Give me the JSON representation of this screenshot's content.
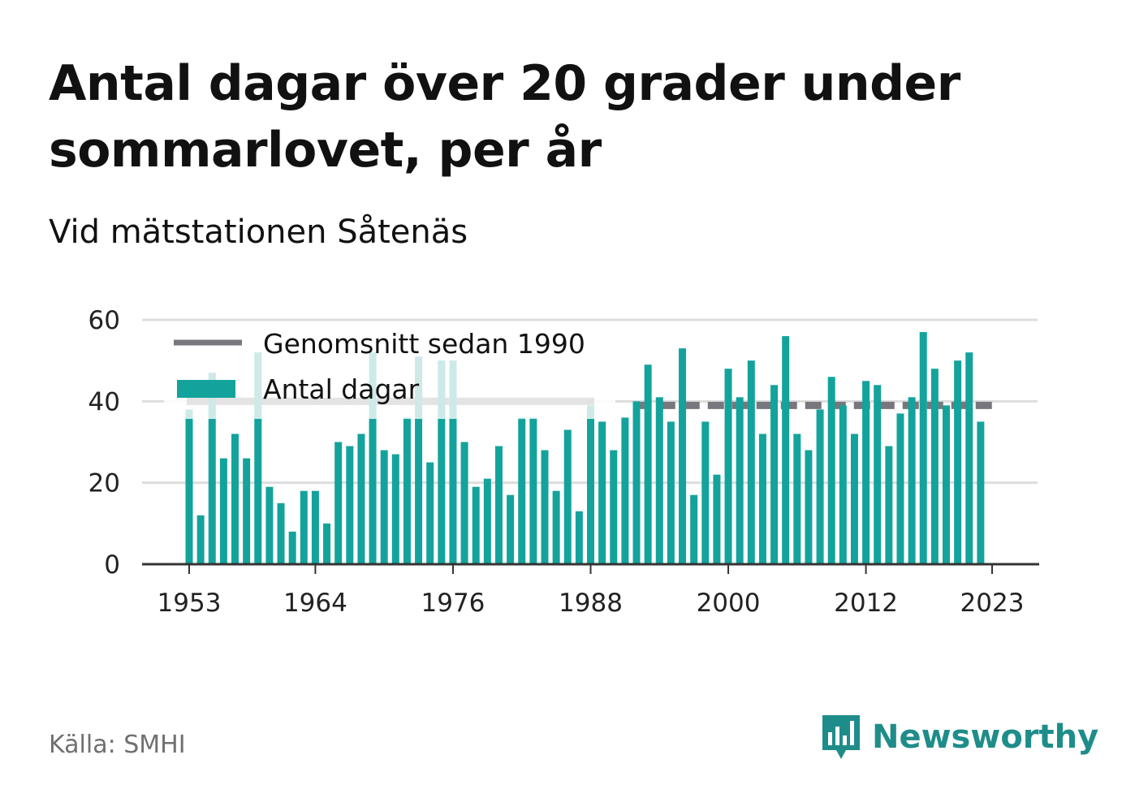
{
  "title": "Antal dagar över 20 grader under sommarlovet, per år",
  "subtitle": "Vid mätstationen Såtenäs",
  "source": "Källa: SMHI",
  "brand": "Newsworthy",
  "colors": {
    "bar": "#13a39c",
    "bar_faded": "#cdeae8",
    "average": "#78777d",
    "grid": "#dddddd",
    "axis": "#333333",
    "brand": "#1e8d8a"
  },
  "chart_data": {
    "type": "bar",
    "x_ticks": [
      "1953",
      "1964",
      "1976",
      "1988",
      "2000",
      "2012",
      "2023"
    ],
    "y_ticks": [
      "0",
      "20",
      "40",
      "60"
    ],
    "ylim": [
      0,
      60
    ],
    "legend": {
      "position": "top-left",
      "items": [
        {
          "label": "Genomsnitt sedan 1990",
          "kind": "line"
        },
        {
          "label": "Antal dagar",
          "kind": "bar"
        }
      ]
    },
    "average": {
      "label": "Genomsnitt sedan 1990",
      "from": 1990,
      "to": 2023,
      "value": 39
    },
    "series": [
      {
        "name": "Antal dagar",
        "x": [
          1953,
          1954,
          1955,
          1956,
          1957,
          1958,
          1959,
          1960,
          1961,
          1962,
          1963,
          1964,
          1965,
          1966,
          1967,
          1968,
          1969,
          1970,
          1971,
          1972,
          1973,
          1974,
          1975,
          1976,
          1977,
          1978,
          1979,
          1980,
          1981,
          1982,
          1983,
          1984,
          1985,
          1986,
          1987,
          1988,
          1989,
          1990,
          1991,
          1992,
          1993,
          1994,
          1995,
          1996,
          1997,
          1998,
          1999,
          2000,
          2001,
          2002,
          2003,
          2004,
          2005,
          2006,
          2007,
          2008,
          2009,
          2010,
          2011,
          2012,
          2013,
          2014,
          2015,
          2016,
          2017,
          2018,
          2019,
          2020,
          2021,
          2022,
          2023
        ],
        "values": [
          38,
          12,
          47,
          26,
          32,
          26,
          52,
          19,
          15,
          8,
          18,
          18,
          10,
          30,
          29,
          32,
          52,
          28,
          27,
          36,
          51,
          25,
          50,
          50,
          30,
          19,
          21,
          29,
          17,
          36,
          36,
          28,
          18,
          33,
          13,
          39,
          35,
          28,
          36,
          40,
          49,
          41,
          35,
          53,
          17,
          35,
          22,
          48,
          41,
          50,
          32,
          44,
          56,
          32,
          28,
          38,
          46,
          39,
          32,
          45,
          44,
          29,
          37,
          41,
          57,
          48,
          39,
          50,
          52,
          35,
          null
        ]
      }
    ]
  }
}
